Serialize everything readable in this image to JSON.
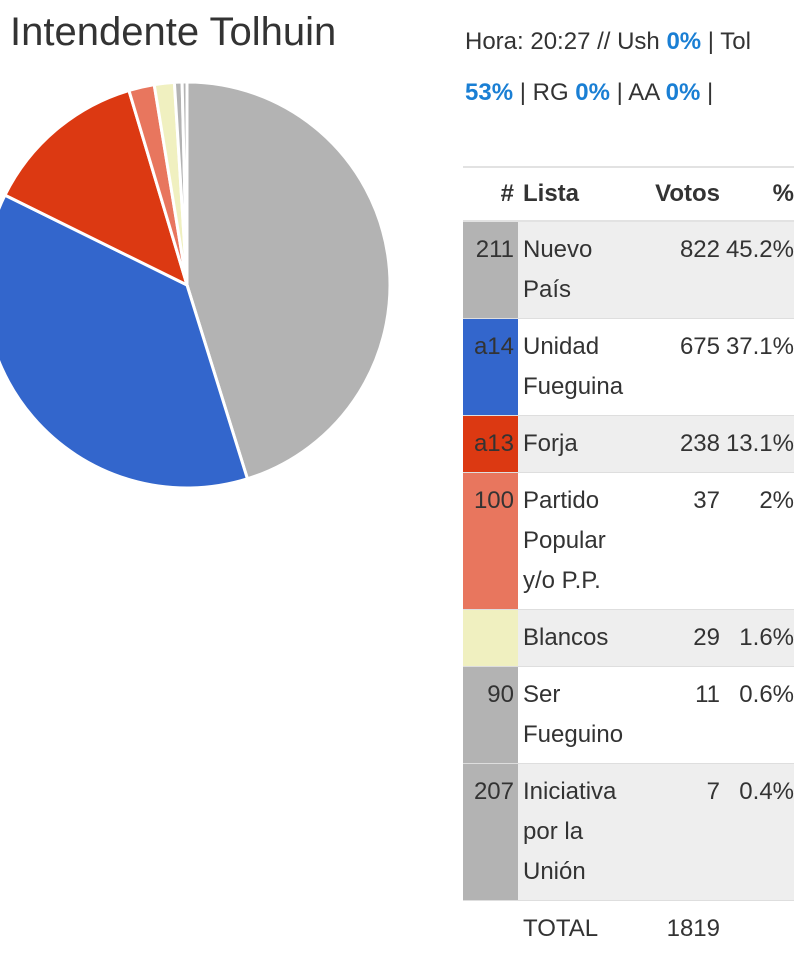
{
  "title": "Intendente Tolhuin",
  "status": {
    "hora_label": "Hora: 20:27 //",
    "items": [
      {
        "label": "Ush",
        "pct": "0%"
      },
      {
        "label": "Tol",
        "pct": "53%"
      },
      {
        "label": "RG",
        "pct": "0%"
      },
      {
        "label": "AA",
        "pct": "0%"
      }
    ]
  },
  "table": {
    "headers": [
      "#",
      "Lista",
      "Votos",
      "%"
    ],
    "rows": [
      {
        "num": "211",
        "lista": "Nuevo País",
        "votos": "822",
        "pct": "45.2%",
        "color": "#b3b3b3"
      },
      {
        "num": "a14",
        "lista": "Unidad Fueguina",
        "votos": "675",
        "pct": "37.1%",
        "color": "#3366cc"
      },
      {
        "num": "a13",
        "lista": "Forja",
        "votos": "238",
        "pct": "13.1%",
        "color": "#dc3912"
      },
      {
        "num": "100",
        "lista": "Partido Popular y/o P.P.",
        "votos": "37",
        "pct": "2%",
        "color": "#e8765e"
      },
      {
        "num": "",
        "lista": "Blancos",
        "votos": "29",
        "pct": "1.6%",
        "color": "#f0f0c0"
      },
      {
        "num": "90",
        "lista": "Ser Fueguino",
        "votos": "11",
        "pct": "0.6%",
        "color": "#b3b3b3"
      },
      {
        "num": "207",
        "lista": "Iniciativa por la Unión",
        "votos": "7",
        "pct": "0.4%",
        "color": "#b3b3b3"
      }
    ],
    "total_label": "TOTAL",
    "total_votos": "1819"
  },
  "chart_data": {
    "type": "pie",
    "categories": [
      "Nuevo País",
      "Unidad Fueguina",
      "Forja",
      "Partido Popular y/o P.P.",
      "Blancos",
      "Ser Fueguino",
      "Iniciativa por la Unión"
    ],
    "values": [
      822,
      675,
      238,
      37,
      29,
      11,
      7
    ],
    "colors": [
      "#b3b3b3",
      "#3366cc",
      "#dc3912",
      "#e8765e",
      "#f0f0c0",
      "#b3b3b3",
      "#b3b3b3"
    ]
  }
}
